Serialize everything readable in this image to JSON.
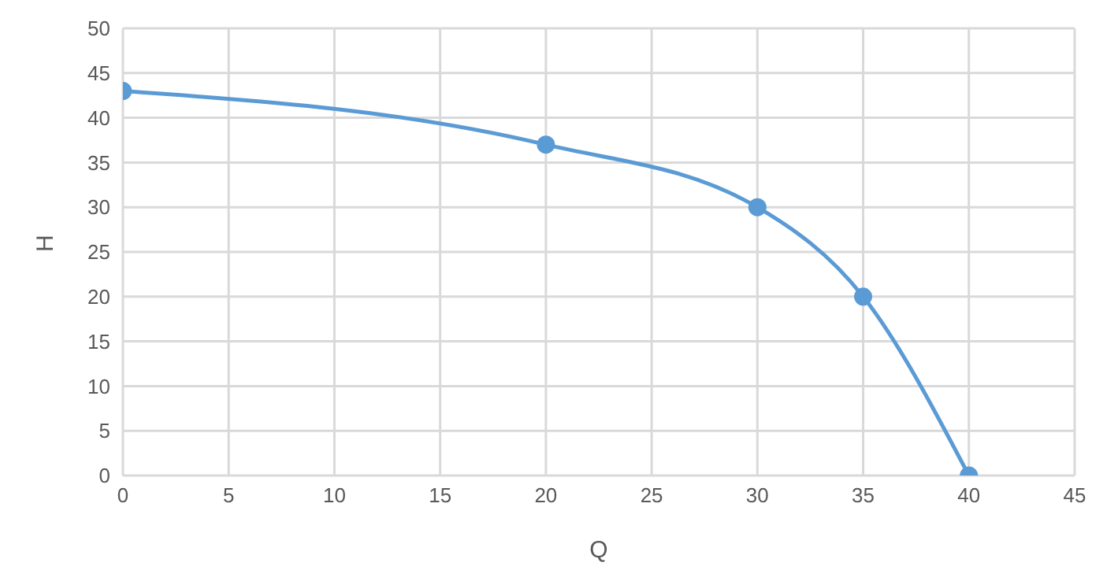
{
  "chart_data": {
    "type": "line",
    "xlabel": "Q",
    "ylabel": "H",
    "x": [
      0,
      20,
      30,
      35,
      40
    ],
    "series": [
      {
        "color": "#5b9bd5",
        "values": [
          43,
          37,
          30,
          20,
          0
        ]
      }
    ],
    "xlim": [
      0,
      45
    ],
    "xticks": [
      0,
      5,
      10,
      15,
      20,
      25,
      30,
      35,
      40,
      45
    ],
    "ylim": [
      0,
      50
    ],
    "yticks": [
      0,
      5,
      10,
      15,
      20,
      25,
      30,
      35,
      40,
      45,
      50
    ],
    "grid": true,
    "marker": "circle",
    "line_style": "solid",
    "legend": false
  }
}
